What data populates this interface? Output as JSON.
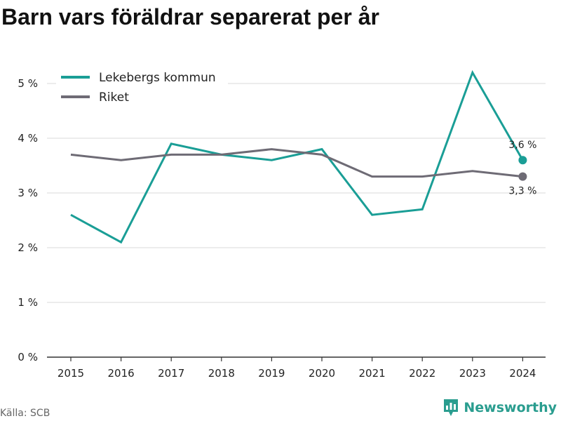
{
  "title": "Barn vars föräldrar separerat per år",
  "source": "Källa: SCB",
  "brand": {
    "name": "Newsworthy",
    "color": "#2a9d8f",
    "icon": "bar-chart-badge-icon"
  },
  "legend": {
    "placement": "top-left"
  },
  "colors": {
    "grid": "#d9d9d9",
    "axis": "#333333",
    "tick_label": "#222222"
  },
  "chart_data": {
    "type": "line",
    "title": "Barn vars föräldrar separerat per år",
    "xlabel": "",
    "ylabel": "",
    "x": [
      2015,
      2016,
      2017,
      2018,
      2019,
      2020,
      2021,
      2022,
      2023,
      2024
    ],
    "x_tick_labels": [
      "2015",
      "2016",
      "2017",
      "2018",
      "2019",
      "2020",
      "2021",
      "2022",
      "2023",
      "2024"
    ],
    "ylim": [
      0,
      5.5
    ],
    "y_ticks": [
      0,
      1,
      2,
      3,
      4,
      5
    ],
    "y_tick_labels": [
      "0 %",
      "1 %",
      "2 %",
      "3 %",
      "4 %",
      "5 %"
    ],
    "grid": true,
    "series": [
      {
        "name": "Lekebergs kommun",
        "color": "#1a9e96",
        "values": [
          2.6,
          2.1,
          3.9,
          3.7,
          3.6,
          3.8,
          2.6,
          2.7,
          5.2,
          3.6
        ],
        "end_label": "3,6 %"
      },
      {
        "name": "Riket",
        "color": "#6e6b75",
        "values": [
          3.7,
          3.6,
          3.7,
          3.7,
          3.8,
          3.7,
          3.3,
          3.3,
          3.4,
          3.3
        ],
        "end_label": "3,3 %"
      }
    ]
  }
}
